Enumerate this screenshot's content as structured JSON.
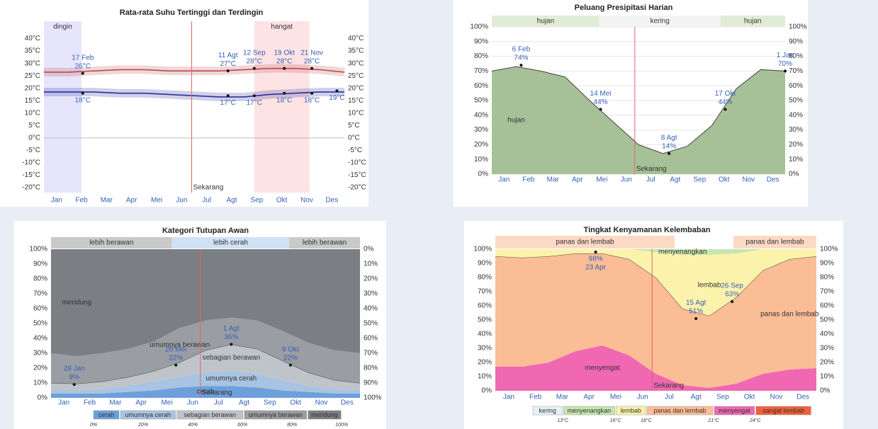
{
  "chart_data": [
    {
      "type": "line",
      "title": "Rata-rata Suhu Tertinggi dan Terdingin",
      "categories": [
        "Jan",
        "Feb",
        "Mar",
        "Apr",
        "Mei",
        "Jun",
        "Jul",
        "Agt",
        "Sep",
        "Okt",
        "Nov",
        "Des"
      ],
      "x": [
        0,
        1,
        2,
        3,
        4,
        5,
        6,
        7,
        8,
        9,
        10,
        11,
        12
      ],
      "xlim": [
        0,
        12
      ],
      "ylim": [
        -22,
        47
      ],
      "yticks": [
        {
          "value": 40,
          "label": "40°C"
        },
        {
          "value": 35,
          "label": "35°C"
        },
        {
          "value": 30,
          "label": "30°C"
        },
        {
          "value": 25,
          "label": "25°C"
        },
        {
          "value": 20,
          "label": "20°C"
        },
        {
          "value": 15,
          "label": "15°C"
        },
        {
          "value": 10,
          "label": "10°C"
        },
        {
          "value": 5,
          "label": "5°C"
        },
        {
          "value": 0,
          "label": "0°C"
        },
        {
          "value": -5,
          "label": "-5°C"
        },
        {
          "value": -10,
          "label": "-10°C"
        },
        {
          "value": -15,
          "label": "-15°C"
        },
        {
          "value": -20,
          "label": "-20°C"
        }
      ],
      "baseline": 0,
      "bands": [
        {
          "label": "dingin",
          "start": 0,
          "end": 1.5,
          "color": "#e7e5fb"
        },
        {
          "label": "hangat",
          "start": 8.4,
          "end": 10.6,
          "color": "#fde3e3"
        }
      ],
      "now": {
        "label": "Sekarang",
        "x": 5.9
      },
      "series": [
        {
          "color": "#b94a4f",
          "values": [
            26.5,
            26.5,
            27,
            27.5,
            27.5,
            27,
            27,
            27,
            27.5,
            28,
            28,
            27.5,
            26.5
          ],
          "annotations": [
            {
              "x": 1.55,
              "date": "17 Feb",
              "value": 26,
              "value_label": "26°C"
            },
            {
              "x": 7.35,
              "date": "11 Agt",
              "value": 27,
              "value_label": "27°C"
            },
            {
              "x": 8.4,
              "date": "12 Sep",
              "value": 28,
              "value_label": "28°C"
            },
            {
              "x": 9.6,
              "date": "19 Okt",
              "value": 28,
              "value_label": "28°C"
            },
            {
              "x": 10.7,
              "date": "21 Nov",
              "value": 28,
              "value_label": "28°C"
            }
          ]
        },
        {
          "color": "#2a2f9c",
          "values": [
            18.5,
            18.5,
            18.5,
            18,
            18,
            17.5,
            17,
            16.5,
            16.5,
            17.5,
            18,
            18.5,
            18.5
          ],
          "annotations": [
            {
              "x": 1.55,
              "value": 18,
              "value_label": "18°C"
            },
            {
              "x": 7.35,
              "value": 17,
              "value_label": "17°C"
            },
            {
              "x": 8.4,
              "value": 17,
              "value_label": "17°C"
            },
            {
              "x": 9.6,
              "value": 18,
              "value_label": "18°C"
            },
            {
              "x": 10.7,
              "value": 18,
              "value_label": "18°C"
            },
            {
              "x": 11.7,
              "value": 19,
              "value_label": "19°C"
            }
          ]
        }
      ]
    },
    {
      "type": "area",
      "title": "Peluang Presipitasi Harian",
      "categories": [
        "Jan",
        "Feb",
        "Mar",
        "Apr",
        "Mei",
        "Jun",
        "Jul",
        "Agt",
        "Sep",
        "Okt",
        "Nov",
        "Des"
      ],
      "x": [
        0,
        1,
        2,
        3,
        4,
        5,
        6,
        7,
        8,
        9,
        10,
        11,
        12
      ],
      "xlim": [
        0,
        12
      ],
      "ylim": [
        0,
        100
      ],
      "grid": true,
      "yticks": [
        {
          "value": 100,
          "label": "100%"
        },
        {
          "value": 90,
          "label": "90%"
        },
        {
          "value": 80,
          "label": "80%"
        },
        {
          "value": 70,
          "label": "70%"
        },
        {
          "value": 60,
          "label": "60%"
        },
        {
          "value": 50,
          "label": "50%"
        },
        {
          "value": 40,
          "label": "40%"
        },
        {
          "value": 30,
          "label": "30%"
        },
        {
          "value": 20,
          "label": "20%"
        },
        {
          "value": 10,
          "label": "10%"
        },
        {
          "value": 0,
          "label": "0%"
        }
      ],
      "bands": [
        {
          "label": "hujan",
          "start": 0,
          "end": 4.4,
          "color": "#e1ecd7"
        },
        {
          "label": "kering",
          "start": 4.4,
          "end": 9.35,
          "color": "#f4f4f4"
        },
        {
          "label": "hujan",
          "start": 9.35,
          "end": 12,
          "color": "#e1ecd7"
        }
      ],
      "now": {
        "label": "Sekarang",
        "x": 5.85
      },
      "series": [
        {
          "label": "hujan",
          "color": "#a6c197",
          "outline": true,
          "values": [
            70,
            73,
            70,
            66,
            50,
            35,
            20,
            14,
            19,
            33,
            58,
            71,
            70
          ],
          "annotations": [
            {
              "x": 1.2,
              "date": "6 Feb",
              "value": 74,
              "value_label": "74%"
            },
            {
              "x": 4.45,
              "date": "14 Mei",
              "value": 44,
              "value_label": "44%"
            },
            {
              "x": 7.25,
              "date": "8 Agt",
              "value": 14,
              "value_label": "14%"
            },
            {
              "x": 9.55,
              "date": "17 Okt",
              "value": 44,
              "value_label": "44%"
            },
            {
              "x": 12,
              "date": "1 Jan",
              "value": 70,
              "value_label": "70%"
            }
          ]
        }
      ]
    },
    {
      "type": "stacked-area",
      "title": "Kategori Tutupan Awan",
      "categories": [
        "Jan",
        "Feb",
        "Mar",
        "Apr",
        "Mei",
        "Jun",
        "Jul",
        "Agt",
        "Sep",
        "Okt",
        "Nov",
        "Des"
      ],
      "x": [
        0,
        1,
        2,
        3,
        4,
        5,
        6,
        7,
        8,
        9,
        10,
        11,
        12
      ],
      "xlim": [
        0,
        12
      ],
      "ylim": [
        0,
        100
      ],
      "y2lim": [
        100,
        0
      ],
      "yticks": [
        {
          "value": 100,
          "label": "100%"
        },
        {
          "value": 90,
          "label": "90%"
        },
        {
          "value": 80,
          "label": "80%"
        },
        {
          "value": 70,
          "label": "70%"
        },
        {
          "value": 60,
          "label": "60%"
        },
        {
          "value": 50,
          "label": "50%"
        },
        {
          "value": 40,
          "label": "40%"
        },
        {
          "value": 30,
          "label": "30%"
        },
        {
          "value": 20,
          "label": "20%"
        },
        {
          "value": 10,
          "label": "10%"
        },
        {
          "value": 0,
          "label": "0%"
        }
      ],
      "y2ticks": [
        {
          "value": 0,
          "label": "0%"
        },
        {
          "value": 10,
          "label": "10%"
        },
        {
          "value": 20,
          "label": "20%"
        },
        {
          "value": 30,
          "label": "30%"
        },
        {
          "value": 40,
          "label": "40%"
        },
        {
          "value": 50,
          "label": "50%"
        },
        {
          "value": 60,
          "label": "60%"
        },
        {
          "value": 70,
          "label": "70%"
        },
        {
          "value": 80,
          "label": "80%"
        },
        {
          "value": 90,
          "label": "90%"
        },
        {
          "value": 100,
          "label": "100%"
        }
      ],
      "bands": [
        {
          "label": "lebih berawan",
          "start": 0,
          "end": 4.7,
          "color": "#c9c9c9"
        },
        {
          "label": "lebih cerah",
          "start": 4.7,
          "end": 9.25,
          "color": "#cfe1f5"
        },
        {
          "label": "lebih berawan",
          "start": 9.25,
          "end": 12,
          "color": "#c9c9c9"
        }
      ],
      "now": {
        "label": "Sekarang",
        "x": 5.8
      },
      "series": [
        {
          "name": "cerah",
          "color": "#6d9fdb",
          "values": [
            3,
            3,
            3,
            4,
            5,
            7,
            8,
            8,
            7,
            5,
            4,
            3,
            3
          ]
        },
        {
          "name": "umumnya cerah",
          "color": "#a9c3e2",
          "values": [
            2,
            2,
            3,
            4,
            6,
            7,
            9,
            10,
            9,
            7,
            4,
            3,
            2
          ]
        },
        {
          "name": "sebagian berawan",
          "color": "#bfc4cb",
          "outline": true,
          "values": [
            5,
            4.5,
            5,
            6,
            7,
            10,
            15,
            18,
            17,
            13,
            9,
            6,
            5
          ],
          "annotations": [
            {
              "x": 0.9,
              "date": "28 Jan",
              "value": 9,
              "value_label": "9%"
            },
            {
              "x": 4.85,
              "date": "26 Mei",
              "value": 22,
              "value_label": "22%"
            },
            {
              "x": 7,
              "date": "1 Agt",
              "value": 36,
              "value_label": "36%"
            },
            {
              "x": 9.3,
              "date": "9 Okt",
              "value": 22,
              "value_label": "22%"
            }
          ]
        },
        {
          "name": "umumnya berawan",
          "color": "#9a9da2",
          "values": [
            20,
            18.5,
            19,
            19,
            20,
            23,
            20,
            18,
            19,
            20,
            20,
            20,
            20
          ]
        },
        {
          "name": "mendung",
          "color": "#7b7e83",
          "values": [
            70,
            72,
            70,
            67,
            62,
            53,
            48,
            46,
            48,
            55,
            63,
            68,
            70
          ]
        }
      ],
      "legend_ticks": [
        "0%",
        "20%",
        "40%",
        "60%",
        "80%",
        "100%"
      ]
    },
    {
      "type": "stacked-area",
      "title": "Tingkat Kenyamanan Kelembaban",
      "categories": [
        "Jan",
        "Feb",
        "Mar",
        "Apr",
        "Mei",
        "Jun",
        "Jul",
        "Agt",
        "Sep",
        "Okt",
        "Nov",
        "Des"
      ],
      "x": [
        0,
        1,
        2,
        3,
        4,
        5,
        6,
        7,
        8,
        9,
        10,
        11,
        12
      ],
      "xlim": [
        0,
        12
      ],
      "ylim": [
        0,
        100
      ],
      "yticks": [
        {
          "value": 100,
          "label": "100%"
        },
        {
          "value": 90,
          "label": "90%"
        },
        {
          "value": 80,
          "label": "80%"
        },
        {
          "value": 70,
          "label": "70%"
        },
        {
          "value": 60,
          "label": "60%"
        },
        {
          "value": 50,
          "label": "50%"
        },
        {
          "value": 40,
          "label": "40%"
        },
        {
          "value": 30,
          "label": "30%"
        },
        {
          "value": 20,
          "label": "20%"
        },
        {
          "value": 10,
          "label": "10%"
        },
        {
          "value": 0,
          "label": "0%"
        }
      ],
      "bands": [
        {
          "label": "panas dan lembab",
          "start": 0,
          "end": 6.7,
          "color": "#fcd9c4"
        },
        {
          "label": "panas dan lembab",
          "start": 8.9,
          "end": 12,
          "color": "#fcd9c4"
        }
      ],
      "now": {
        "label": "Sekarang",
        "x": 5.86
      },
      "series": [
        {
          "name": "menyengat",
          "color": "#f067b2",
          "values": [
            17,
            17,
            20,
            28,
            32,
            25,
            12,
            4,
            2,
            5,
            12,
            15,
            16
          ]
        },
        {
          "name": "panas dan lembab",
          "color": "#fbbd96",
          "outline": true,
          "values": [
            78,
            77,
            75,
            69,
            65,
            68,
            68,
            54,
            51,
            61,
            73,
            78,
            79
          ],
          "annotations": [
            {
              "x": 3.75,
              "date": "23 Apr",
              "value": 98,
              "value_label": "98%"
            },
            {
              "x": 7.5,
              "date": "15 Agt",
              "value": 51,
              "value_label": "51%"
            },
            {
              "x": 8.85,
              "date": "26 Sep",
              "value": 63,
              "value_label": "63%"
            }
          ]
        },
        {
          "name": "lembab",
          "color": "#fbf3ab",
          "values": [
            5,
            6,
            5,
            3,
            3,
            7,
            18,
            38,
            43,
            31,
            15,
            7,
            5
          ]
        },
        {
          "name": "menyenangkan",
          "color": "#c6e6ae",
          "values": [
            0,
            0,
            0,
            0,
            0,
            0,
            2,
            4,
            4,
            3,
            0,
            0,
            0
          ]
        }
      ],
      "legend": [
        {
          "name": "kering",
          "color": "#e6f1f7"
        },
        {
          "name": "menyenangkan",
          "color": "#c6e6ae"
        },
        {
          "name": "lembab",
          "color": "#fbf3ab"
        },
        {
          "name": "panas dan lembab",
          "color": "#fbbd96"
        },
        {
          "name": "menyengat",
          "color": "#f067b2"
        },
        {
          "name": "sangat lembab",
          "color": "#f0603a"
        }
      ],
      "legend_ticks": [
        "13°C",
        "16°C",
        "18°C",
        "21°C",
        "24°C"
      ]
    }
  ]
}
